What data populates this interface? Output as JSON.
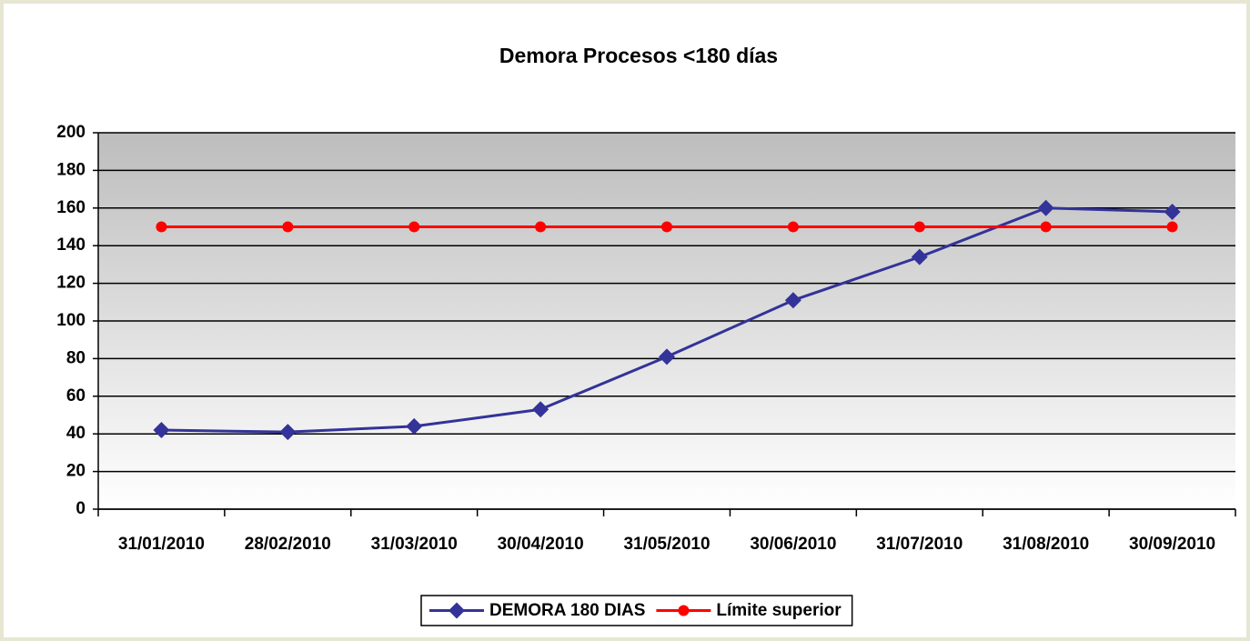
{
  "chart_data": {
    "type": "line",
    "title": "Demora Procesos <180 días",
    "categories": [
      "31/01/2010",
      "28/02/2010",
      "31/03/2010",
      "30/04/2010",
      "31/05/2010",
      "30/06/2010",
      "31/07/2010",
      "31/08/2010",
      "30/09/2010"
    ],
    "series": [
      {
        "name": "DEMORA 180 DIAS",
        "color": "#333399",
        "marker": "diamond",
        "values": [
          42,
          41,
          44,
          53,
          81,
          111,
          134,
          160,
          158
        ]
      },
      {
        "name": "Límite superior",
        "color": "#ff0000",
        "marker": "circle",
        "values": [
          150,
          150,
          150,
          150,
          150,
          150,
          150,
          150,
          150
        ]
      }
    ],
    "ylim": [
      0,
      200
    ],
    "yticks": [
      0,
      20,
      40,
      60,
      80,
      100,
      120,
      140,
      160,
      180,
      200
    ],
    "grid": true,
    "legend": "bottom"
  }
}
